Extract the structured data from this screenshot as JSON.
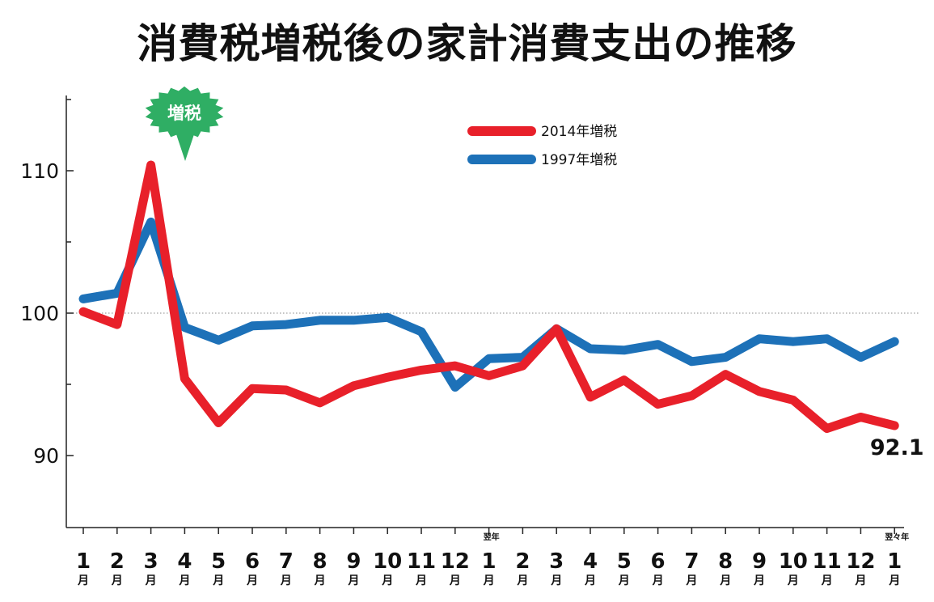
{
  "chart_data": {
    "type": "line",
    "title": "消費税増税後の家計消費支出の推移",
    "categories": [
      "1",
      "2",
      "3",
      "4",
      "5",
      "6",
      "7",
      "8",
      "9",
      "10",
      "11",
      "12",
      "1",
      "2",
      "3",
      "4",
      "5",
      "6",
      "7",
      "8",
      "9",
      "10",
      "11",
      "12",
      "1"
    ],
    "month_unit": "月",
    "category_prefixes": [
      {
        "index": 12,
        "text": "翌年"
      },
      {
        "index": 24,
        "text": "翌々年"
      }
    ],
    "yticks": [
      90,
      100,
      110
    ],
    "ylim": [
      85,
      116
    ],
    "reference_line": 100,
    "series": [
      {
        "name": "2014年増税",
        "color": "#e8202a",
        "values": [
          100.1,
          99.2,
          110.4,
          95.4,
          92.3,
          94.7,
          94.6,
          93.7,
          94.9,
          95.5,
          96.0,
          96.3,
          95.6,
          96.3,
          98.9,
          94.1,
          95.3,
          93.6,
          94.2,
          95.7,
          94.5,
          93.9,
          91.9,
          92.7,
          92.1
        ]
      },
      {
        "name": "1997年増税",
        "color": "#1d71b8",
        "values": [
          101.0,
          101.4,
          106.4,
          99.0,
          98.1,
          99.1,
          99.2,
          99.5,
          99.5,
          99.7,
          98.7,
          94.8,
          96.8,
          96.9,
          98.9,
          97.5,
          97.4,
          97.8,
          96.6,
          96.9,
          98.2,
          98.0,
          98.2,
          96.9,
          98.0
        ]
      }
    ],
    "end_label": "92.1",
    "annotation": {
      "text": "増税",
      "category_index": 3,
      "color": "#2fae64"
    },
    "legend_position": "top-center",
    "grid": false
  }
}
